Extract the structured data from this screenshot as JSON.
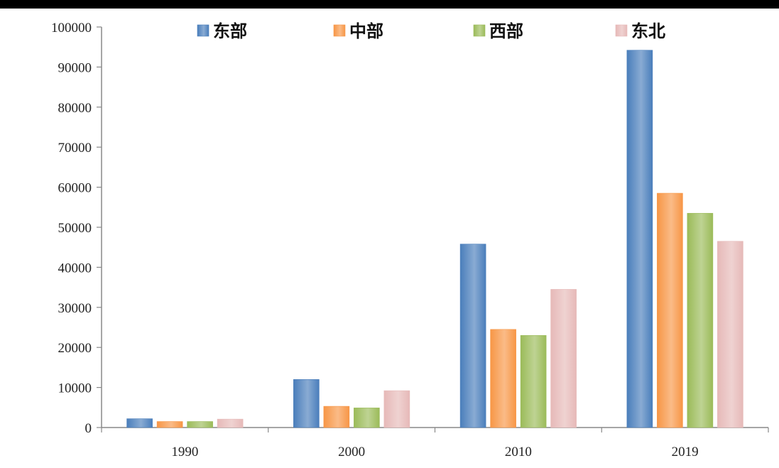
{
  "chart_data": {
    "type": "bar",
    "categories": [
      "1990",
      "2000",
      "2010",
      "2019"
    ],
    "series": [
      {
        "name": "东部",
        "color": "#4A7EBB",
        "values": [
          2200,
          12000,
          45800,
          94200
        ]
      },
      {
        "name": "中部",
        "color": "#F79646",
        "values": [
          1500,
          5300,
          24500,
          58500
        ]
      },
      {
        "name": "西部",
        "color": "#9BBB59",
        "values": [
          1500,
          4900,
          23000,
          53500
        ]
      },
      {
        "name": "东北",
        "color": "#E6B9B8",
        "values": [
          2100,
          9200,
          34500,
          46500
        ]
      }
    ],
    "ylim": [
      0,
      100000
    ],
    "yticks": [
      "0",
      "10000",
      "20000",
      "30000",
      "40000",
      "50000",
      "60000",
      "70000",
      "80000",
      "90000",
      "100000"
    ],
    "title": "",
    "xlabel": "",
    "ylabel": "",
    "legend_position": "top",
    "grid": false
  }
}
